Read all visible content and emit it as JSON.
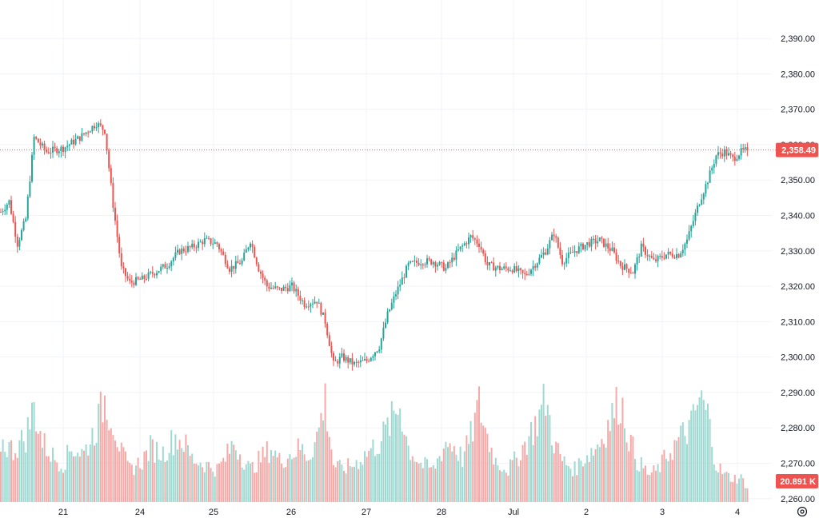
{
  "chart_data": {
    "type": "candlestick",
    "grid": true,
    "colors": {
      "up": "#26a69a",
      "down": "#ef5350",
      "volume_up": "#9fd9d2",
      "volume_down": "#f7a9a7",
      "price_line": "#ef5350",
      "grid": "#f0f3fa",
      "axis_text": "#131722"
    },
    "price_axis": {
      "ticks": [
        "2,390.00",
        "2,380.00",
        "2,370.00",
        "2,360.00",
        "2,350.00",
        "2,340.00",
        "2,330.00",
        "2,320.00",
        "2,310.00",
        "2,300.00",
        "2,290.00",
        "2,280.00",
        "2,270.00",
        "2,260.00"
      ],
      "tick_values": [
        2390,
        2380,
        2370,
        2360,
        2350,
        2340,
        2330,
        2320,
        2310,
        2300,
        2290,
        2280,
        2270,
        2260
      ],
      "ylim": [
        2259.5,
        2392.5
      ]
    },
    "time_axis": {
      "labels": [
        "21",
        "24",
        "25",
        "26",
        "27",
        "28",
        "Jul",
        "2",
        "3",
        "4"
      ]
    },
    "current_price": {
      "value": 2358.49,
      "label": "2,358.49"
    },
    "current_volume": {
      "label": "20.891 K"
    },
    "anchors": [
      [
        0,
        2341
      ],
      [
        4,
        2344
      ],
      [
        8,
        2332
      ],
      [
        12,
        2339
      ],
      [
        16,
        2362
      ],
      [
        22,
        2358
      ],
      [
        30,
        2359
      ],
      [
        38,
        2362
      ],
      [
        46,
        2366
      ],
      [
        50,
        2364
      ],
      [
        54,
        2343
      ],
      [
        58,
        2325
      ],
      [
        62,
        2321
      ],
      [
        68,
        2322
      ],
      [
        74,
        2324
      ],
      [
        80,
        2326
      ],
      [
        86,
        2330
      ],
      [
        92,
        2331
      ],
      [
        98,
        2333
      ],
      [
        104,
        2332
      ],
      [
        110,
        2325
      ],
      [
        116,
        2327
      ],
      [
        120,
        2333
      ],
      [
        124,
        2325
      ],
      [
        128,
        2320
      ],
      [
        134,
        2319
      ],
      [
        140,
        2320
      ],
      [
        146,
        2315
      ],
      [
        152,
        2316
      ],
      [
        156,
        2310
      ],
      [
        160,
        2298
      ],
      [
        164,
        2300
      ],
      [
        170,
        2298
      ],
      [
        176,
        2299
      ],
      [
        182,
        2303
      ],
      [
        186,
        2312
      ],
      [
        190,
        2318
      ],
      [
        196,
        2326
      ],
      [
        202,
        2327
      ],
      [
        208,
        2327
      ],
      [
        214,
        2325
      ],
      [
        220,
        2330
      ],
      [
        226,
        2334
      ],
      [
        230,
        2332
      ],
      [
        234,
        2326
      ],
      [
        240,
        2325
      ],
      [
        246,
        2325
      ],
      [
        252,
        2323
      ],
      [
        258,
        2327
      ],
      [
        262,
        2330
      ],
      [
        266,
        2335
      ],
      [
        270,
        2327
      ],
      [
        276,
        2330
      ],
      [
        282,
        2332
      ],
      [
        288,
        2333
      ],
      [
        294,
        2330
      ],
      [
        298,
        2326
      ],
      [
        304,
        2324
      ],
      [
        308,
        2331
      ],
      [
        314,
        2327
      ],
      [
        320,
        2329
      ],
      [
        326,
        2329
      ],
      [
        330,
        2333
      ],
      [
        336,
        2344
      ],
      [
        340,
        2350
      ],
      [
        344,
        2357
      ],
      [
        348,
        2358
      ],
      [
        352,
        2356
      ],
      [
        356,
        2358
      ],
      [
        359,
        2358.49
      ]
    ],
    "volume_anchors": [
      [
        0,
        55
      ],
      [
        6,
        48
      ],
      [
        12,
        60
      ],
      [
        16,
        88
      ],
      [
        20,
        55
      ],
      [
        26,
        40
      ],
      [
        30,
        35
      ],
      [
        34,
        50
      ],
      [
        40,
        45
      ],
      [
        46,
        70
      ],
      [
        50,
        95
      ],
      [
        54,
        75
      ],
      [
        58,
        45
      ],
      [
        62,
        30
      ],
      [
        68,
        38
      ],
      [
        72,
        50
      ],
      [
        78,
        45
      ],
      [
        84,
        60
      ],
      [
        88,
        55
      ],
      [
        92,
        40
      ],
      [
        98,
        35
      ],
      [
        104,
        30
      ],
      [
        108,
        40
      ],
      [
        112,
        55
      ],
      [
        116,
        42
      ],
      [
        120,
        30
      ],
      [
        124,
        38
      ],
      [
        130,
        50
      ],
      [
        134,
        38
      ],
      [
        140,
        45
      ],
      [
        144,
        50
      ],
      [
        148,
        42
      ],
      [
        152,
        60
      ],
      [
        156,
        95
      ],
      [
        160,
        35
      ],
      [
        164,
        30
      ],
      [
        170,
        35
      ],
      [
        176,
        45
      ],
      [
        182,
        55
      ],
      [
        188,
        75
      ],
      [
        192,
        90
      ],
      [
        196,
        50
      ],
      [
        202,
        35
      ],
      [
        208,
        30
      ],
      [
        214,
        55
      ],
      [
        218,
        52
      ],
      [
        222,
        40
      ],
      [
        226,
        60
      ],
      [
        230,
        90
      ],
      [
        234,
        60
      ],
      [
        238,
        38
      ],
      [
        244,
        30
      ],
      [
        248,
        40
      ],
      [
        254,
        60
      ],
      [
        258,
        75
      ],
      [
        262,
        95
      ],
      [
        266,
        55
      ],
      [
        270,
        38
      ],
      [
        276,
        30
      ],
      [
        280,
        40
      ],
      [
        286,
        50
      ],
      [
        290,
        62
      ],
      [
        294,
        80
      ],
      [
        298,
        95
      ],
      [
        302,
        60
      ],
      [
        306,
        38
      ],
      [
        312,
        25
      ],
      [
        316,
        30
      ],
      [
        320,
        42
      ],
      [
        324,
        52
      ],
      [
        328,
        62
      ],
      [
        332,
        70
      ],
      [
        336,
        95
      ],
      [
        340,
        80
      ],
      [
        344,
        35
      ],
      [
        348,
        25
      ],
      [
        352,
        22
      ],
      [
        356,
        22
      ],
      [
        359,
        14
      ]
    ],
    "volume_axis_max": 118
  }
}
